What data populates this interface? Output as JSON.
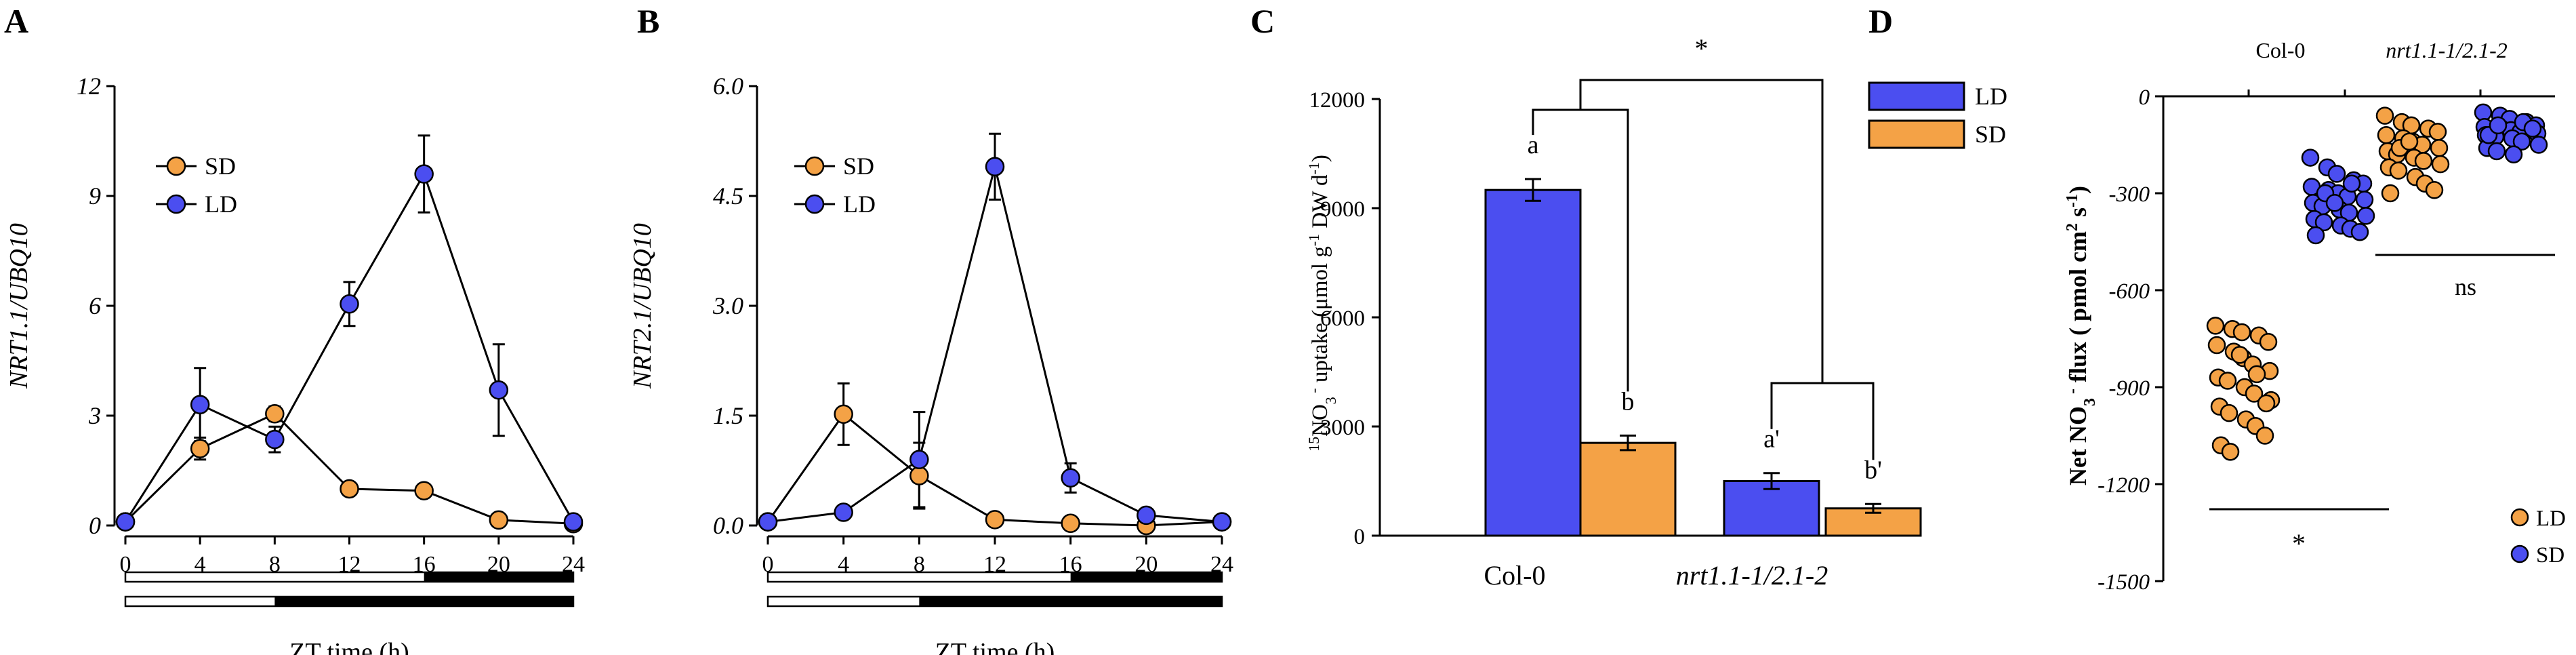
{
  "colors": {
    "SD": "#f4a246",
    "LD": "#4b4ef0",
    "axis": "#000000"
  },
  "chart_data": [
    {
      "panel": "A",
      "type": "line",
      "ylabel": "NRT1.1/UBQ10",
      "xlabel": "ZT time (h)",
      "ylim": [
        0,
        12
      ],
      "yticks": [
        "0",
        "3",
        "6",
        "9",
        "12"
      ],
      "xticks": [
        "0",
        "4",
        "8",
        "12",
        "16",
        "20",
        "24"
      ],
      "x": [
        0,
        4,
        8,
        12,
        16,
        20,
        24
      ],
      "legend": [
        "SD",
        "LD"
      ],
      "series": [
        {
          "name": "SD",
          "values": [
            0.1,
            2.1,
            3.05,
            1.0,
            0.95,
            0.15,
            0.05
          ],
          "err": [
            0.05,
            0.3,
            0.2,
            0.1,
            0.1,
            0.05,
            0.03
          ]
        },
        {
          "name": "LD",
          "values": [
            0.1,
            3.3,
            2.35,
            6.05,
            9.6,
            3.7,
            0.1
          ],
          "err": [
            0.05,
            1.0,
            0.35,
            0.6,
            1.05,
            1.25,
            0.03
          ]
        }
      ],
      "photoperiod_bars": [
        {
          "name": "LD",
          "light_hours": 16
        },
        {
          "name": "SD",
          "light_hours": 8
        }
      ]
    },
    {
      "panel": "B",
      "type": "line",
      "ylabel": "NRT2.1/UBQ10",
      "xlabel": "ZT time (h)",
      "ylim": [
        0,
        6
      ],
      "yticks": [
        "0.0",
        "1.5",
        "3.0",
        "4.5",
        "6.0"
      ],
      "xticks": [
        "0",
        "4",
        "8",
        "12",
        "16",
        "20",
        "24"
      ],
      "x": [
        0,
        4,
        8,
        12,
        16,
        20,
        24
      ],
      "legend": [
        "SD",
        "LD"
      ],
      "series": [
        {
          "name": "SD",
          "values": [
            0.05,
            1.52,
            0.68,
            0.08,
            0.03,
            0.0,
            0.05
          ],
          "err": [
            0.03,
            0.42,
            0.45,
            0.05,
            0.03,
            0.02,
            0.03
          ]
        },
        {
          "name": "LD",
          "values": [
            0.05,
            0.18,
            0.9,
            4.9,
            0.65,
            0.14,
            0.05
          ],
          "err": [
            0.03,
            0.04,
            0.65,
            0.45,
            0.2,
            0.05,
            0.03
          ]
        }
      ],
      "photoperiod_bars": [
        {
          "name": "LD",
          "light_hours": 16
        },
        {
          "name": "SD",
          "light_hours": 8
        }
      ]
    },
    {
      "panel": "C",
      "type": "bar",
      "ylabel_prefix": "15",
      "ylabel": "NO3- uptake (μmol g-1 DW d-1)",
      "ylim": [
        0,
        12000
      ],
      "yticks": [
        "0",
        "3000",
        "6000",
        "9000",
        "12000"
      ],
      "categories": [
        "Col-0",
        "nrt1.1-1/2.1-2"
      ],
      "legend": [
        "LD",
        "SD"
      ],
      "series": [
        {
          "name": "LD",
          "values": [
            9500,
            1500
          ],
          "err": [
            300,
            220
          ],
          "letters": [
            "a",
            "a'"
          ]
        },
        {
          "name": "SD",
          "values": [
            2550,
            750
          ],
          "err": [
            200,
            120
          ],
          "letters": [
            "b",
            "b'"
          ]
        }
      ],
      "annotations": [
        "*"
      ]
    },
    {
      "panel": "D",
      "type": "scatter",
      "ylabel": "Net NO3- flux ( pmol cm-2 s-1)",
      "ylim": [
        -1500,
        0
      ],
      "yticks": [
        "0",
        "-300",
        "-600",
        "-900",
        "-1200",
        "-1500"
      ],
      "groups": [
        "Col-0",
        "nrt1.1-1/2.1-2"
      ],
      "legend": [
        "LD",
        "SD"
      ],
      "series": [
        {
          "name": "LD",
          "group": "Col-0",
          "values": [
            -710,
            -720,
            -730,
            -740,
            -760,
            -770,
            -790,
            -810,
            -830,
            -850,
            -870,
            -880,
            -900,
            -920,
            -940,
            -960,
            -980,
            -1000,
            -1020,
            -1050,
            -1080,
            -1100,
            -800,
            -860,
            -950
          ]
        },
        {
          "name": "SD",
          "group": "Col-0",
          "values": [
            -190,
            -220,
            -240,
            -260,
            -270,
            -280,
            -290,
            -300,
            -310,
            -320,
            -330,
            -340,
            -350,
            -360,
            -370,
            -380,
            -390,
            -400,
            -410,
            -420,
            -430,
            -300,
            -330,
            -270
          ]
        },
        {
          "name": "LD",
          "group": "nrt1.1-1/2.1-2",
          "values": [
            -60,
            -80,
            -90,
            -100,
            -110,
            -120,
            -130,
            -140,
            -150,
            -160,
            -170,
            -180,
            -190,
            -200,
            -210,
            -220,
            -230,
            -250,
            -270,
            -290,
            -300,
            -160,
            -140
          ]
        },
        {
          "name": "SD",
          "group": "nrt1.1-1/2.1-2",
          "values": [
            -50,
            -60,
            -70,
            -80,
            -90,
            -95,
            -100,
            -105,
            -110,
            -115,
            -120,
            -125,
            -130,
            -140,
            -150,
            -160,
            -170,
            -180,
            -80,
            -100,
            -120,
            -90
          ]
        }
      ],
      "annotations": [
        "*",
        "ns"
      ]
    }
  ],
  "labels": {
    "panel_a": "A",
    "panel_b": "B",
    "panel_c": "C",
    "panel_d": "D",
    "star": "*",
    "ns": "ns",
    "col0": "Col-0",
    "mutant": "nrt1.1-1/2.1-2",
    "letter_a": "a",
    "letter_b": "b",
    "letter_a2": "a'",
    "letter_b2": "b'",
    "c_ylabel_pre": "NO",
    "c_ylabel_post": " uptake (μmol g",
    "c_ylabel_tail": " DW d",
    "d_ylabel_main": "Net NO",
    "d_ylabel_flux": " flux ( pmol cm",
    "d_ylabel_s": " s"
  }
}
